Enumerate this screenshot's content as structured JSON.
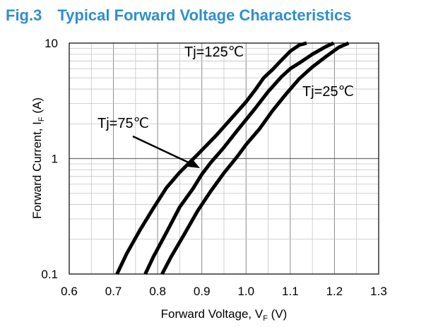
{
  "chart_data": {
    "type": "line",
    "title": "Fig.3　Typical Forward Voltage Characteristics",
    "xlabel": {
      "main": "Forward Voltage, V",
      "sub": "F",
      "unit": " (V)"
    },
    "ylabel": {
      "main": "Forward Current, I",
      "sub": "F",
      "unit": " (A)"
    },
    "xlim": [
      0.6,
      1.3
    ],
    "ylim": [
      0.1,
      10
    ],
    "yscale": "log",
    "grid": true,
    "line_color": "#000000",
    "x_ticks": [
      "0.6",
      "0.7",
      "0.8",
      "0.9",
      "1.0",
      "1.1",
      "1.2",
      "1.3"
    ],
    "y_ticks": [
      "0.1",
      "1",
      "10"
    ],
    "series": [
      {
        "name": "Tj=125℃",
        "x": [
          0.708,
          0.73,
          0.76,
          0.79,
          0.82,
          0.85,
          0.89,
          0.93,
          0.97,
          1.0,
          1.02,
          1.04,
          1.06,
          1.08,
          1.1,
          1.12,
          1.137
        ],
        "y": [
          0.1,
          0.15,
          0.24,
          0.37,
          0.56,
          0.76,
          1.08,
          1.55,
          2.3,
          3.1,
          3.9,
          5.0,
          5.9,
          7.1,
          8.5,
          9.6,
          10
        ]
      },
      {
        "name": "Tj=75℃",
        "x": [
          0.772,
          0.79,
          0.82,
          0.85,
          0.88,
          0.9,
          0.92,
          0.95,
          0.98,
          1.02,
          1.05,
          1.08,
          1.1,
          1.12,
          1.15,
          1.18,
          1.198
        ],
        "y": [
          0.1,
          0.14,
          0.23,
          0.38,
          0.55,
          0.73,
          0.92,
          1.25,
          1.75,
          2.7,
          3.8,
          5.1,
          6.0,
          6.7,
          8.0,
          9.3,
          10
        ]
      },
      {
        "name": "Tj=25℃",
        "x": [
          0.81,
          0.83,
          0.86,
          0.89,
          0.92,
          0.95,
          0.98,
          1.0,
          1.03,
          1.06,
          1.09,
          1.12,
          1.15,
          1.18,
          1.21,
          1.232
        ],
        "y": [
          0.1,
          0.14,
          0.22,
          0.35,
          0.52,
          0.75,
          1.04,
          1.32,
          1.8,
          2.6,
          3.6,
          4.9,
          6.2,
          7.6,
          9.2,
          10
        ]
      }
    ],
    "annotations": [
      "Tj=125℃",
      "Tj=25℃",
      "Tj=75℃"
    ]
  }
}
